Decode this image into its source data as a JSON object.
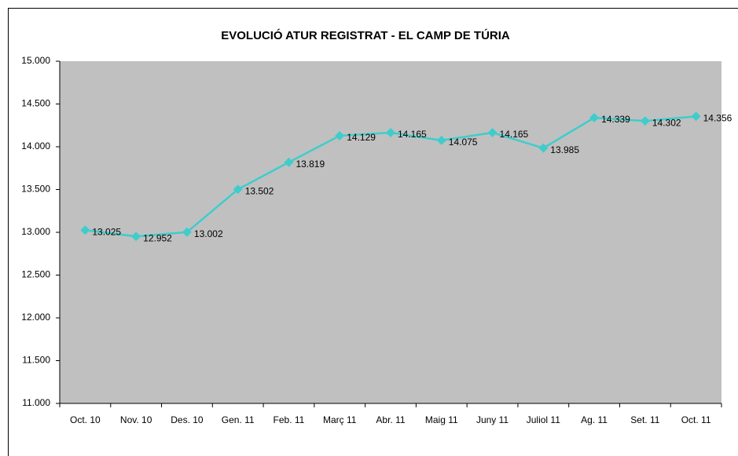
{
  "chart_data": {
    "type": "line",
    "title": "EVOLUCIÓ ATUR REGISTRAT - EL CAMP DE TÚRIA",
    "categories": [
      "Oct. 10",
      "Nov. 10",
      "Des. 10",
      "Gen. 11",
      "Feb. 11",
      "Març 11",
      "Abr. 11",
      "Maig 11",
      "Juny 11",
      "Juliol 11",
      "Ag. 11",
      "Set. 11",
      "Oct. 11"
    ],
    "series": [
      {
        "color": "#40cccc",
        "values": [
          13025,
          12952,
          13002,
          13502,
          13819,
          14129,
          14165,
          14075,
          14165,
          13985,
          14339,
          14302,
          14356
        ],
        "value_labels": [
          "13.025",
          "12.952",
          "13.002",
          "13.502",
          "13.819",
          "14.129",
          "14.165",
          "14.075",
          "14.165",
          "13.985",
          "14.339",
          "14.302",
          "14.356"
        ]
      }
    ],
    "ylim": [
      11000,
      15000
    ],
    "yticks": [
      {
        "value": 11000,
        "label": "11.000"
      },
      {
        "value": 11500,
        "label": "11.500"
      },
      {
        "value": 12000,
        "label": "12.000"
      },
      {
        "value": 12500,
        "label": "12.500"
      },
      {
        "value": 13000,
        "label": "13.000"
      },
      {
        "value": 13500,
        "label": "13.500"
      },
      {
        "value": 14000,
        "label": "14.000"
      },
      {
        "value": 14500,
        "label": "14.500"
      },
      {
        "value": 15000,
        "label": "15.000"
      }
    ],
    "plot_background": "#c0c0c0"
  }
}
